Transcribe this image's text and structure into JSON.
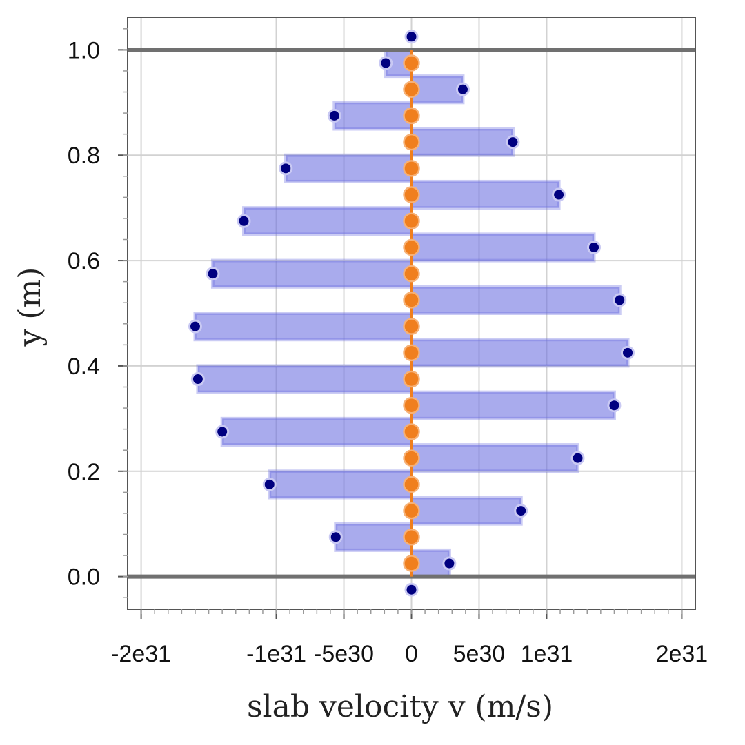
{
  "chart_data": {
    "type": "bar",
    "orientation": "horizontal",
    "xlabel": "slab velocity v (m/s)",
    "ylabel": "y (m)",
    "xlim": [
      -2.1e+31,
      2.1e+31
    ],
    "ylim": [
      -0.062,
      1.062
    ],
    "grid": true,
    "x_ticks": [
      {
        "value": -2e+31,
        "label": "-2e31"
      },
      {
        "value": -1e+31,
        "label": "-1e31"
      },
      {
        "value": -5e+30,
        "label": "-5e30"
      },
      {
        "value": 0,
        "label": "0"
      },
      {
        "value": 5e+30,
        "label": "5e30"
      },
      {
        "value": 1e+31,
        "label": "1e31"
      },
      {
        "value": 2e+31,
        "label": "2e31"
      }
    ],
    "y_ticks": [
      {
        "value": 0.0,
        "label": "0.0"
      },
      {
        "value": 0.2,
        "label": "0.2"
      },
      {
        "value": 0.4,
        "label": "0.4"
      },
      {
        "value": 0.6,
        "label": "0.6"
      },
      {
        "value": 0.8,
        "label": "0.8"
      },
      {
        "value": 1.0,
        "label": "1.0"
      }
    ],
    "boundaries": [
      0.0,
      1.0
    ],
    "slab_width": 0.05,
    "series": [
      {
        "type": "bar",
        "y": [
          0.025,
          0.075,
          0.125,
          0.175,
          0.225,
          0.275,
          0.325,
          0.375,
          0.425,
          0.475,
          0.525,
          0.575,
          0.625,
          0.675,
          0.725,
          0.775,
          0.825,
          0.875,
          0.925,
          0.975
        ],
        "values": [
          2.8e+30,
          -5.6e+30,
          8.1e+30,
          -1.05e+31,
          1.23e+31,
          -1.4e+31,
          1.5e+31,
          -1.58e+31,
          1.6e+31,
          -1.6e+31,
          1.54e+31,
          -1.47e+31,
          1.35e+31,
          -1.24e+31,
          1.09e+31,
          -9.3e+30,
          7.5e+30,
          -5.7e+30,
          3.8e+30,
          -1.9e+30
        ],
        "color": "#6a6ee0"
      },
      {
        "type": "scatter",
        "y": [
          -0.025,
          0.025,
          0.075,
          0.125,
          0.175,
          0.225,
          0.275,
          0.325,
          0.375,
          0.425,
          0.475,
          0.525,
          0.575,
          0.625,
          0.675,
          0.725,
          0.775,
          0.825,
          0.875,
          0.925,
          0.975,
          1.025
        ],
        "x": [
          0,
          2.8e+30,
          -5.6e+30,
          8.1e+30,
          -1.05e+31,
          1.23e+31,
          -1.4e+31,
          1.5e+31,
          -1.58e+31,
          1.6e+31,
          -1.6e+31,
          1.54e+31,
          -1.47e+31,
          1.35e+31,
          -1.24e+31,
          1.09e+31,
          -9.3e+30,
          7.5e+30,
          -5.7e+30,
          3.8e+30,
          -1.9e+30,
          0
        ],
        "color": "#000080"
      },
      {
        "type": "line",
        "y": [
          0.0,
          1.0
        ],
        "x": [
          0,
          0
        ],
        "color": "#f07f1e"
      },
      {
        "type": "scatter",
        "y": [
          0.025,
          0.075,
          0.125,
          0.175,
          0.225,
          0.275,
          0.325,
          0.375,
          0.425,
          0.475,
          0.525,
          0.575,
          0.625,
          0.675,
          0.725,
          0.775,
          0.825,
          0.875,
          0.925,
          0.975
        ],
        "x": [
          0,
          0,
          0,
          0,
          0,
          0,
          0,
          0,
          0,
          0,
          0,
          0,
          0,
          0,
          0,
          0,
          0,
          0,
          0,
          0
        ],
        "color": "#f07f1e"
      }
    ]
  }
}
